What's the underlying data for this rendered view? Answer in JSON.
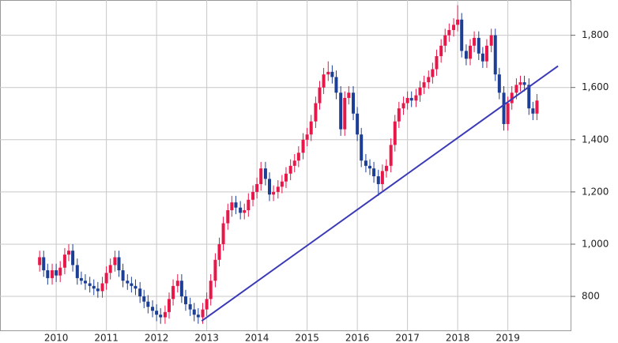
{
  "chart_data": {
    "type": "candlestick",
    "x": [
      2009.67,
      2009.75,
      2009.83,
      2009.92,
      2010.0,
      2010.08,
      2010.17,
      2010.25,
      2010.33,
      2010.42,
      2010.5,
      2010.58,
      2010.67,
      2010.75,
      2010.83,
      2010.92,
      2011.0,
      2011.08,
      2011.17,
      2011.25,
      2011.33,
      2011.42,
      2011.5,
      2011.58,
      2011.67,
      2011.75,
      2011.83,
      2011.92,
      2012.0,
      2012.08,
      2012.17,
      2012.25,
      2012.33,
      2012.42,
      2012.5,
      2012.58,
      2012.67,
      2012.75,
      2012.83,
      2012.92,
      2013.0,
      2013.08,
      2013.17,
      2013.25,
      2013.33,
      2013.42,
      2013.5,
      2013.58,
      2013.67,
      2013.75,
      2013.83,
      2013.92,
      2014.0,
      2014.08,
      2014.17,
      2014.25,
      2014.33,
      2014.42,
      2014.5,
      2014.58,
      2014.67,
      2014.75,
      2014.83,
      2014.92,
      2015.0,
      2015.08,
      2015.17,
      2015.25,
      2015.33,
      2015.42,
      2015.5,
      2015.58,
      2015.67,
      2015.75,
      2015.83,
      2015.92,
      2016.0,
      2016.08,
      2016.17,
      2016.25,
      2016.33,
      2016.42,
      2016.5,
      2016.58,
      2016.67,
      2016.75,
      2016.83,
      2016.92,
      2017.0,
      2017.08,
      2017.17,
      2017.25,
      2017.33,
      2017.42,
      2017.5,
      2017.58,
      2017.67,
      2017.75,
      2017.83,
      2017.92,
      2018.0,
      2018.08,
      2018.17,
      2018.25,
      2018.33,
      2018.42,
      2018.5,
      2018.58,
      2018.67,
      2018.75,
      2018.83,
      2018.92,
      2019.0,
      2019.08,
      2019.17,
      2019.25,
      2019.33,
      2019.42,
      2019.5,
      2019.58
    ],
    "open": [
      920,
      950,
      900,
      870,
      900,
      880,
      910,
      960,
      975,
      920,
      870,
      860,
      850,
      840,
      830,
      820,
      850,
      890,
      920,
      950,
      900,
      860,
      850,
      840,
      830,
      800,
      780,
      760,
      745,
      730,
      720,
      740,
      790,
      840,
      860,
      800,
      770,
      750,
      730,
      720,
      750,
      790,
      860,
      940,
      1000,
      1080,
      1130,
      1160,
      1140,
      1120,
      1130,
      1170,
      1200,
      1230,
      1290,
      1250,
      1190,
      1200,
      1220,
      1240,
      1270,
      1300,
      1320,
      1350,
      1400,
      1420,
      1470,
      1540,
      1600,
      1650,
      1660,
      1640,
      1580,
      1440,
      1560,
      1580,
      1500,
      1420,
      1320,
      1300,
      1290,
      1260,
      1230,
      1280,
      1300,
      1380,
      1470,
      1520,
      1540,
      1560,
      1550,
      1570,
      1600,
      1620,
      1640,
      1670,
      1720,
      1760,
      1800,
      1820,
      1840,
      1860,
      1740,
      1710,
      1760,
      1790,
      1730,
      1700,
      1760,
      1800,
      1650,
      1580,
      1460,
      1540,
      1580,
      1610,
      1620,
      1610,
      1520,
      1500
    ],
    "high": [
      975,
      975,
      925,
      925,
      925,
      935,
      985,
      1000,
      1000,
      945,
      895,
      885,
      875,
      865,
      855,
      875,
      915,
      945,
      975,
      975,
      925,
      885,
      875,
      865,
      855,
      825,
      805,
      785,
      770,
      755,
      765,
      815,
      865,
      885,
      885,
      825,
      795,
      775,
      755,
      775,
      815,
      885,
      965,
      1025,
      1105,
      1155,
      1185,
      1185,
      1165,
      1155,
      1195,
      1225,
      1255,
      1315,
      1315,
      1275,
      1225,
      1245,
      1265,
      1295,
      1325,
      1345,
      1375,
      1425,
      1445,
      1495,
      1565,
      1625,
      1675,
      1700,
      1685,
      1665,
      1605,
      1585,
      1605,
      1605,
      1525,
      1445,
      1345,
      1325,
      1315,
      1285,
      1305,
      1325,
      1405,
      1495,
      1545,
      1565,
      1585,
      1585,
      1595,
      1625,
      1645,
      1665,
      1695,
      1745,
      1785,
      1825,
      1845,
      1865,
      1915,
      1885,
      1765,
      1785,
      1815,
      1815,
      1755,
      1785,
      1825,
      1825,
      1675,
      1605,
      1565,
      1605,
      1635,
      1645,
      1645,
      1635,
      1545,
      1575
    ],
    "low": [
      895,
      875,
      845,
      845,
      855,
      855,
      885,
      935,
      895,
      845,
      845,
      825,
      815,
      805,
      795,
      795,
      825,
      865,
      895,
      875,
      835,
      825,
      815,
      805,
      775,
      755,
      735,
      720,
      705,
      695,
      695,
      715,
      765,
      815,
      775,
      745,
      725,
      705,
      695,
      695,
      725,
      765,
      835,
      915,
      975,
      1055,
      1105,
      1115,
      1095,
      1095,
      1105,
      1145,
      1175,
      1205,
      1225,
      1165,
      1165,
      1175,
      1195,
      1215,
      1245,
      1275,
      1295,
      1325,
      1375,
      1395,
      1445,
      1515,
      1575,
      1625,
      1615,
      1555,
      1415,
      1415,
      1535,
      1475,
      1395,
      1295,
      1275,
      1265,
      1235,
      1185,
      1205,
      1255,
      1275,
      1355,
      1445,
      1495,
      1515,
      1525,
      1525,
      1545,
      1575,
      1595,
      1615,
      1645,
      1695,
      1735,
      1775,
      1795,
      1815,
      1715,
      1685,
      1685,
      1735,
      1705,
      1675,
      1675,
      1735,
      1625,
      1555,
      1435,
      1435,
      1515,
      1555,
      1585,
      1585,
      1495,
      1475,
      1475
    ],
    "close": [
      950,
      900,
      870,
      900,
      880,
      910,
      960,
      975,
      920,
      870,
      860,
      850,
      840,
      830,
      820,
      850,
      890,
      920,
      950,
      900,
      860,
      850,
      840,
      830,
      800,
      780,
      760,
      745,
      730,
      720,
      740,
      790,
      840,
      860,
      800,
      770,
      750,
      730,
      720,
      750,
      790,
      860,
      940,
      1000,
      1080,
      1130,
      1160,
      1140,
      1120,
      1130,
      1170,
      1200,
      1230,
      1290,
      1250,
      1190,
      1200,
      1220,
      1240,
      1270,
      1300,
      1320,
      1350,
      1400,
      1420,
      1470,
      1540,
      1600,
      1650,
      1660,
      1640,
      1580,
      1440,
      1560,
      1580,
      1500,
      1420,
      1320,
      1300,
      1290,
      1260,
      1230,
      1280,
      1300,
      1380,
      1470,
      1520,
      1540,
      1560,
      1550,
      1570,
      1600,
      1620,
      1640,
      1670,
      1720,
      1760,
      1800,
      1820,
      1840,
      1860,
      1740,
      1710,
      1760,
      1790,
      1730,
      1700,
      1760,
      1800,
      1650,
      1580,
      1460,
      1540,
      1580,
      1610,
      1620,
      1610,
      1520,
      1500,
      1550
    ],
    "up_color": "#e8174a",
    "down_color": "#1c3f95",
    "trendline": {
      "x": [
        2012.9,
        2020.0
      ],
      "y": [
        706,
        1682
      ],
      "color": "#3a3ab8"
    },
    "xlim": [
      2008.88,
      2020.25
    ],
    "ylim": [
      670,
      1935
    ],
    "xticks": [
      2010,
      2011,
      2012,
      2013,
      2014,
      2015,
      2016,
      2017,
      2018,
      2019
    ],
    "yticks": [
      800,
      {
        "value": 1000,
        "label": "1,000"
      },
      {
        "value": 1200,
        "label": "1,200"
      },
      {
        "value": 1400,
        "label": "1,400"
      },
      {
        "value": 1600,
        "label": "1,600"
      },
      {
        "value": 1800,
        "label": "1,800"
      }
    ],
    "grid": true
  }
}
